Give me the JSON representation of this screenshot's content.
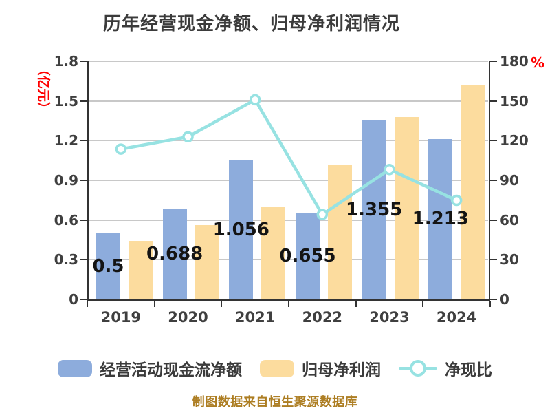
{
  "title": "历年经营现金净额、归母净利润情况",
  "footer": "制图数据来自恒生聚源数据库",
  "colors": {
    "bar_blue": "#8dacdc",
    "bar_orange": "#fcdc9e",
    "line_cyan": "#97e2e2",
    "axis_line": "#333333",
    "grid": "#c8c8c8",
    "tick_label": "#3f3f3f",
    "title": "#3b3b3b",
    "accent_red": "#ff0000",
    "footer_gold": "#ad7e23"
  },
  "chart_data": {
    "type": "bar",
    "title": "历年经营现金净额、归母净利润情况",
    "categories": [
      "2019",
      "2020",
      "2021",
      "2022",
      "2023",
      "2024"
    ],
    "series": [
      {
        "name": "经营活动现金流净额",
        "type": "bar",
        "axis": "left",
        "color": "#8dacdc",
        "values": [
          0.5,
          0.688,
          1.056,
          0.655,
          1.355,
          1.213
        ],
        "labels": [
          "0.5",
          "0.688",
          "1.056",
          "0.655",
          "1.355",
          "1.213"
        ]
      },
      {
        "name": "归母净利润",
        "type": "bar",
        "axis": "left",
        "color": "#fcdc9e",
        "values": [
          0.44,
          0.56,
          0.7,
          1.02,
          1.38,
          1.62
        ]
      },
      {
        "name": "净现比",
        "type": "line",
        "axis": "right",
        "color": "#97e2e2",
        "values": [
          113.6,
          122.9,
          150.9,
          64.2,
          98.2,
          74.9
        ]
      }
    ],
    "left_axis": {
      "label": "（亿元）",
      "min": 0,
      "max": 1.8,
      "tick_step": 0.3,
      "ticks": [
        "0",
        "0.3",
        "0.6",
        "0.9",
        "1.2",
        "1.5",
        "1.8"
      ]
    },
    "right_axis": {
      "label": "%",
      "min": 0,
      "max": 180,
      "tick_step": 30,
      "ticks": [
        "0",
        "30",
        "60",
        "90",
        "120",
        "150",
        "180"
      ]
    },
    "grid": true,
    "legend_position": "bottom"
  }
}
